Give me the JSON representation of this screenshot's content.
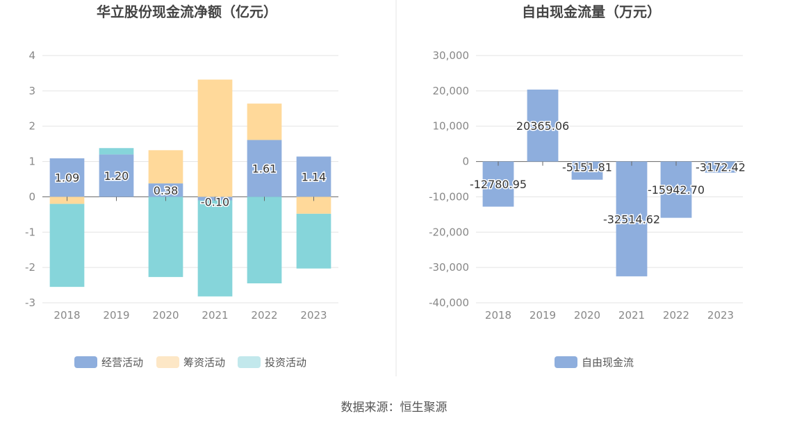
{
  "source_label": "数据来源：恒生聚源",
  "colors": {
    "operating": "#8eaedd",
    "financing": "#ffd99a",
    "investing": "#86d5da",
    "free_cash": "#8eaedd",
    "legend_financing": "#fde7c6",
    "legend_investing": "#c2e8ec"
  },
  "chart_data": [
    {
      "type": "bar",
      "stacked": true,
      "title": "华立股份现金流净额（亿元）",
      "xlabel": "",
      "ylabel": "",
      "categories": [
        "2018",
        "2019",
        "2020",
        "2021",
        "2022",
        "2023"
      ],
      "ylim": [
        -3,
        4
      ],
      "yticks": [
        "4",
        "3",
        "2",
        "1",
        "0",
        "-1",
        "-2",
        "-3"
      ],
      "grid": true,
      "legend_position": "bottom",
      "series": [
        {
          "name": "经营活动",
          "values": [
            1.09,
            1.2,
            0.38,
            -0.1,
            1.61,
            1.14
          ],
          "labels": [
            "1.09",
            "1.20",
            "0.38",
            "-0.10",
            "1.61",
            "1.14"
          ]
        },
        {
          "name": "筹资活动",
          "values": [
            -0.2,
            0.0,
            0.94,
            3.32,
            1.03,
            -0.48
          ]
        },
        {
          "name": "投资活动",
          "values": [
            -2.35,
            0.18,
            -2.27,
            -2.72,
            -2.45,
            -1.55
          ]
        }
      ]
    },
    {
      "type": "bar",
      "title": "自由现金流量（万元）",
      "xlabel": "",
      "ylabel": "",
      "categories": [
        "2018",
        "2019",
        "2020",
        "2021",
        "2022",
        "2023"
      ],
      "ylim": [
        -40000,
        30000
      ],
      "yticks": [
        "30,000",
        "20,000",
        "10,000",
        "0",
        "-10,000",
        "-20,000",
        "-30,000",
        "-40,000"
      ],
      "grid": true,
      "legend_position": "bottom",
      "series": [
        {
          "name": "自由现金流",
          "values": [
            -12780.95,
            20365.06,
            -5151.81,
            -32514.62,
            -15942.7,
            -3172.42
          ],
          "labels": [
            "-12780.95",
            "20365.06",
            "-5151.81",
            "-32514.62",
            "-15942.70",
            "-3172.42"
          ]
        }
      ]
    }
  ]
}
